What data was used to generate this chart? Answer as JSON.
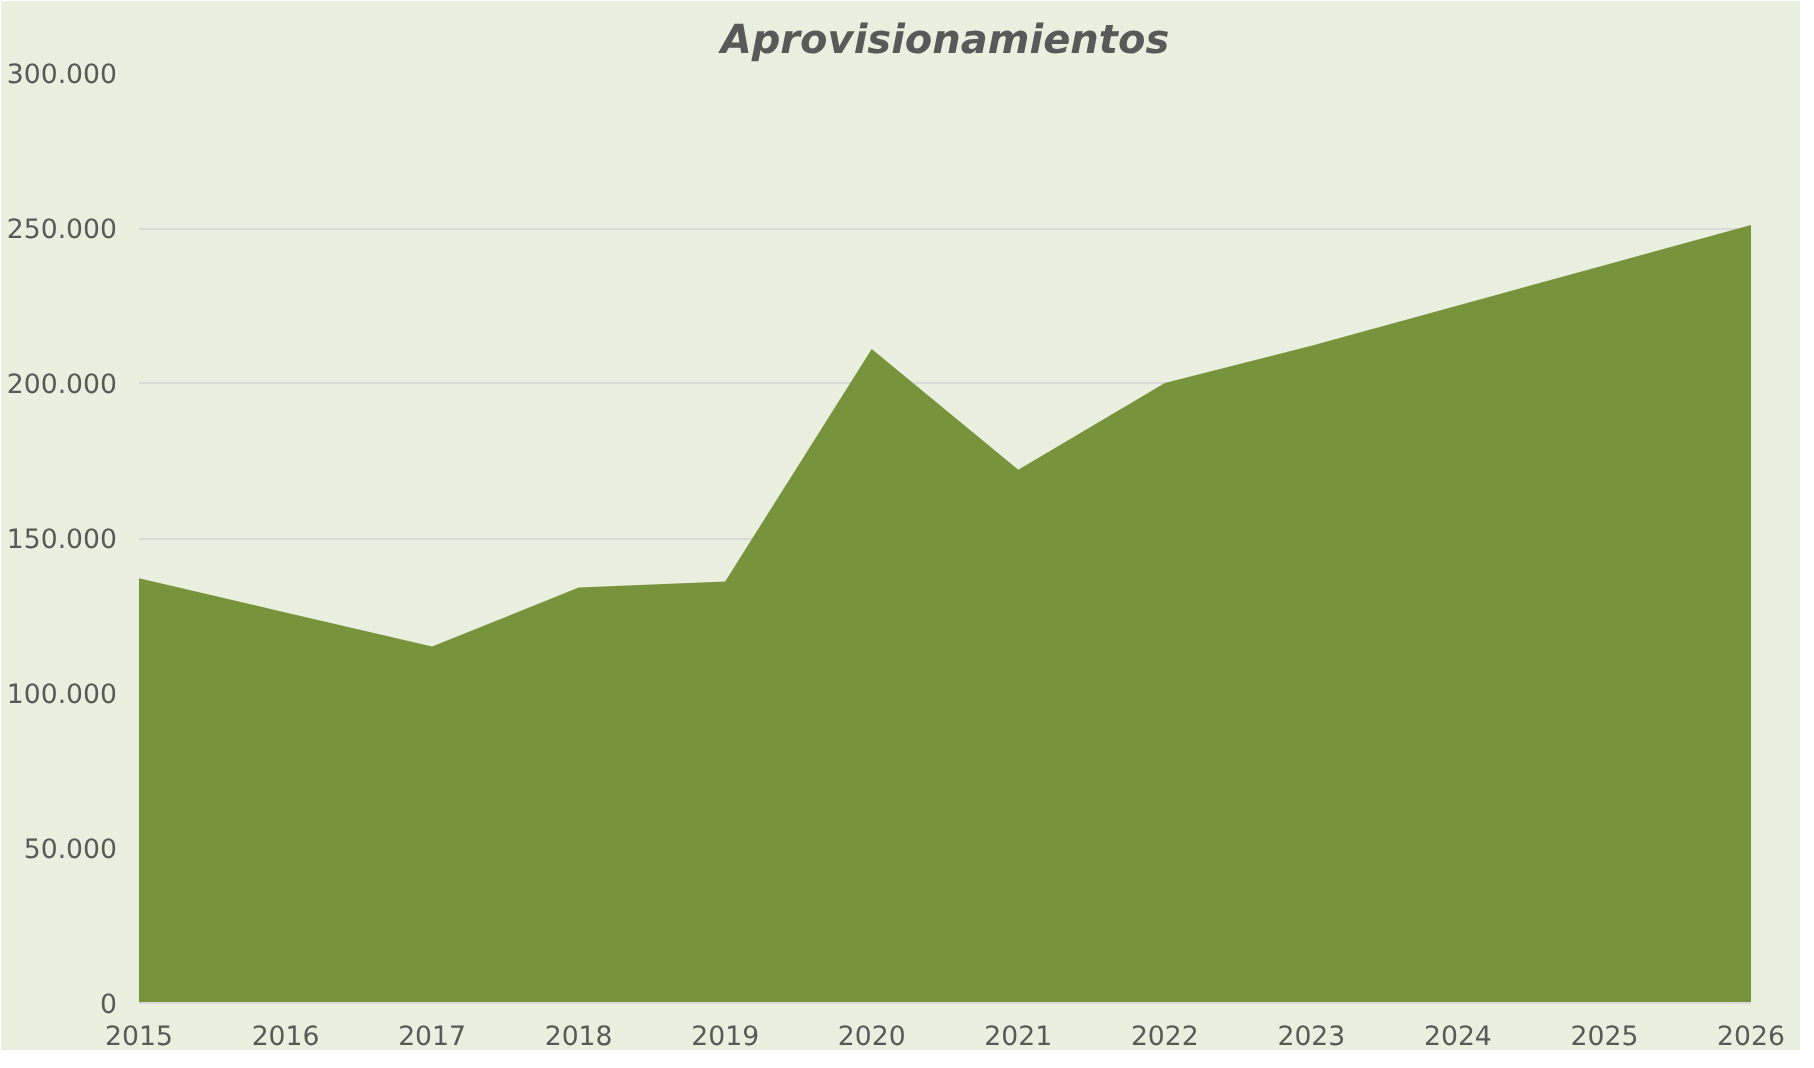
{
  "chart_data": {
    "type": "area",
    "title": "Aprovisionamientos",
    "x": [
      2015,
      2016,
      2017,
      2018,
      2019,
      2020,
      2021,
      2022,
      2023,
      2024,
      2025,
      2026
    ],
    "series": [
      {
        "color": "#77933c",
        "values": [
          137000,
          126000,
          115000,
          134000,
          136000,
          211000,
          172000,
          200000,
          212000,
          225000,
          238000,
          251000
        ]
      }
    ],
    "xlim": [
      2015,
      2026
    ],
    "xticks": [
      2015,
      2016,
      2017,
      2018,
      2019,
      2020,
      2021,
      2022,
      2023,
      2024,
      2025,
      2026
    ],
    "ylim": [
      0,
      300000
    ],
    "yticks": [
      {
        "value": 0,
        "label": "0"
      },
      {
        "value": 50000,
        "label": "50.000"
      },
      {
        "value": 100000,
        "label": "100.000"
      },
      {
        "value": 150000,
        "label": "150.000"
      },
      {
        "value": 200000,
        "label": "200.000"
      },
      {
        "value": 250000,
        "label": "250.000"
      },
      {
        "value": 300000,
        "label": "300.000"
      }
    ],
    "grid": "y"
  }
}
